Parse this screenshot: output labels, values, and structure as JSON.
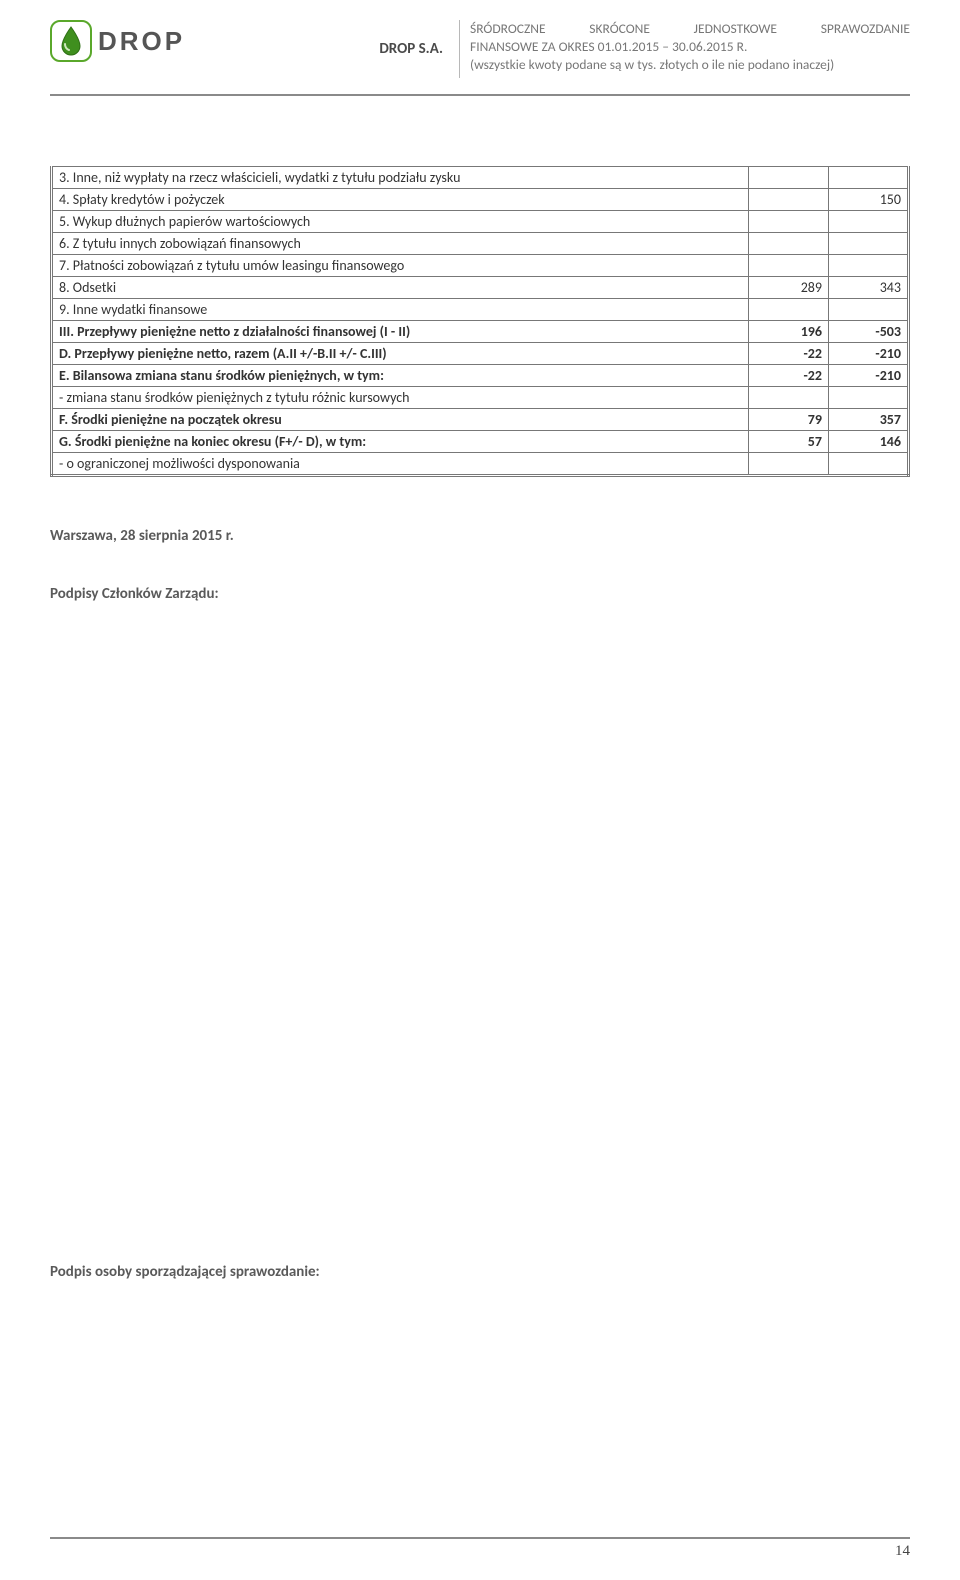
{
  "header": {
    "company": "DROP S.A.",
    "logo_text": "DROP",
    "right_line1": "ŚRÓDROCZNE  SKRÓCONE  JEDNOSTKOWE  SPRAWOZDANIE",
    "right_line2": "FINANSOWE ZA OKRES 01.01.2015 – 30.06.2015 R.",
    "right_line3": "(wszystkie kwoty podane są w tys. złotych o ile nie podano inaczej)",
    "logo_border_color": "#5aa82b",
    "drop_fill": "#3f8f1e"
  },
  "table": {
    "border_color": "#777777",
    "rows": [
      {
        "label": "3. Inne, niż wypłaty na rzecz właścicieli, wydatki z tytułu podziału zysku",
        "c1": "",
        "c2": "",
        "bold": false
      },
      {
        "label": "4. Spłaty kredytów i pożyczek",
        "c1": "",
        "c2": "150",
        "bold": false
      },
      {
        "label": "5. Wykup dłużnych papierów wartościowych",
        "c1": "",
        "c2": "",
        "bold": false
      },
      {
        "label": "6. Z tytułu innych zobowiązań finansowych",
        "c1": "",
        "c2": "",
        "bold": false
      },
      {
        "label": "7. Płatności zobowiązań z tytułu umów leasingu finansowego",
        "c1": "",
        "c2": "",
        "bold": false
      },
      {
        "label": "8. Odsetki",
        "c1": "289",
        "c2": "343",
        "bold": false
      },
      {
        "label": "9. Inne wydatki finansowe",
        "c1": "",
        "c2": "",
        "bold": false
      },
      {
        "label": "III. Przepływy pieniężne netto z działalności finansowej (I - II)",
        "c1": "196",
        "c2": "-503",
        "bold": true
      },
      {
        "label": "D. Przepływy pieniężne netto, razem (A.II +/-B.II +/- C.III)",
        "c1": "-22",
        "c2": "-210",
        "bold": true
      },
      {
        "label": "E. Bilansowa zmiana stanu środków pieniężnych, w tym:",
        "c1": "-22",
        "c2": "-210",
        "bold": true
      },
      {
        "label": "- zmiana stanu środków pieniężnych z tytułu różnic kursowych",
        "c1": "",
        "c2": "",
        "bold": false
      },
      {
        "label": "F. Środki pieniężne na początek okresu",
        "c1": "79",
        "c2": "357",
        "bold": true
      },
      {
        "label": "G. Środki pieniężne na koniec okresu (F+/- D), w tym:",
        "c1": "57",
        "c2": "146",
        "bold": true
      },
      {
        "label": "- o ograniczonej możliwości dysponowania",
        "c1": "",
        "c2": "",
        "bold": false
      }
    ]
  },
  "after": {
    "date_line": "Warszawa, 28 sierpnia 2015 r.",
    "sign1": "Podpisy Członków Zarządu:",
    "sign2": "Podpis osoby sporządzającej sprawozdanie:"
  },
  "page_number": "14"
}
